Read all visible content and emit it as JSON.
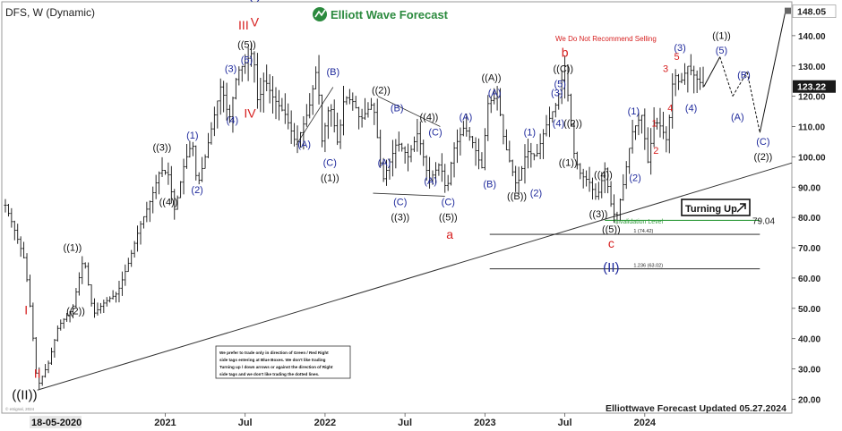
{
  "header": {
    "symbol_label": "DFS, W (Dynamic)",
    "brand": "Elliott Wave Forecast"
  },
  "footer": {
    "updated": "Elliottwave Forecast Updated 05.27.2024",
    "start_date_label": "18-05-2020",
    "credit": "© eSignal, 2024"
  },
  "notes": {
    "disclaimer": "We Do Not Recommend Selling",
    "turning_up": "Turning Up",
    "invalidation": "Invalidation Level",
    "box_lines": [
      "We prefer to trade only in direction of Green / Red Right",
      "side tags entering at Blue Boxes. We don't like trading",
      "Turning up / down arrows or against the direction of Right",
      "side tags and we don't like trading the dotted lines."
    ]
  },
  "colors": {
    "blue": "#1f2a9c",
    "red": "#d61f1f",
    "black": "#111111",
    "green": "#2e9a3a",
    "brand_green": "#2b8a3e"
  },
  "chart_data": {
    "type": "bar",
    "title": "DFS, W (Dynamic)",
    "timeframe": "Weekly",
    "ylim": [
      16,
      150
    ],
    "y_ticks": [
      20,
      30,
      40,
      50,
      60,
      70,
      80,
      90,
      100,
      110,
      120,
      130,
      140
    ],
    "y_tick_labels": [
      "20.00",
      "30.00",
      "40.00",
      "50.00",
      "60.00",
      "70.00",
      "80.00",
      "90.00",
      "100.00",
      "110.00",
      "120.00",
      "130.00",
      "140.00"
    ],
    "price_markers": [
      {
        "value": 148.05,
        "label": "148.05",
        "style": "light"
      },
      {
        "value": 123.22,
        "label": "123.22",
        "style": "dark"
      },
      {
        "value": 79.04,
        "label": "79.04",
        "style": "plain"
      }
    ],
    "x_axis_labels": [
      "2021",
      "Jul",
      "2022",
      "Jul",
      "2023",
      "Jul",
      "2024"
    ],
    "x_axis_positions": [
      2021.0,
      2021.5,
      2022.0,
      2022.5,
      2023.0,
      2023.5,
      2024.0
    ],
    "xlim": [
      2020.0,
      2024.92
    ],
    "price_path": [
      [
        2020.0,
        84
      ],
      [
        2020.05,
        77
      ],
      [
        2020.12,
        66
      ],
      [
        2020.16,
        48
      ],
      [
        2020.2,
        24
      ],
      [
        2020.27,
        32
      ],
      [
        2020.33,
        44
      ],
      [
        2020.42,
        50
      ],
      [
        2020.49,
        67
      ],
      [
        2020.55,
        48
      ],
      [
        2020.62,
        52
      ],
      [
        2020.7,
        55
      ],
      [
        2020.77,
        65
      ],
      [
        2020.84,
        77
      ],
      [
        2020.91,
        86
      ],
      [
        2020.97,
        96
      ],
      [
        2021.02,
        94
      ],
      [
        2021.06,
        82
      ],
      [
        2021.12,
        98
      ],
      [
        2021.17,
        105
      ],
      [
        2021.2,
        90
      ],
      [
        2021.25,
        100
      ],
      [
        2021.3,
        112
      ],
      [
        2021.35,
        124
      ],
      [
        2021.4,
        112
      ],
      [
        2021.45,
        128
      ],
      [
        2021.5,
        131
      ],
      [
        2021.55,
        135
      ],
      [
        2021.58,
        117
      ],
      [
        2021.62,
        126
      ],
      [
        2021.67,
        120
      ],
      [
        2021.75,
        114
      ],
      [
        2021.82,
        104
      ],
      [
        2021.9,
        116
      ],
      [
        2021.95,
        130
      ],
      [
        2021.98,
        105
      ],
      [
        2022.03,
        118
      ],
      [
        2022.08,
        104
      ],
      [
        2022.12,
        120
      ],
      [
        2022.18,
        118
      ],
      [
        2022.22,
        112
      ],
      [
        2022.3,
        118
      ],
      [
        2022.36,
        92
      ],
      [
        2022.45,
        105
      ],
      [
        2022.52,
        100
      ],
      [
        2022.58,
        108
      ],
      [
        2022.65,
        92
      ],
      [
        2022.72,
        98
      ],
      [
        2022.76,
        88
      ],
      [
        2022.8,
        102
      ],
      [
        2022.87,
        110
      ],
      [
        2022.93,
        104
      ],
      [
        2022.98,
        96
      ],
      [
        2023.02,
        118
      ],
      [
        2023.08,
        120
      ],
      [
        2023.12,
        105
      ],
      [
        2023.2,
        90
      ],
      [
        2023.26,
        102
      ],
      [
        2023.32,
        100
      ],
      [
        2023.38,
        110
      ],
      [
        2023.45,
        118
      ],
      [
        2023.5,
        130
      ],
      [
        2023.52,
        120
      ],
      [
        2023.56,
        100
      ],
      [
        2023.6,
        94
      ],
      [
        2023.65,
        92
      ],
      [
        2023.7,
        86
      ],
      [
        2023.75,
        96
      ],
      [
        2023.79,
        84
      ],
      [
        2023.82,
        79
      ],
      [
        2023.87,
        92
      ],
      [
        2023.92,
        108
      ],
      [
        2023.98,
        114
      ],
      [
        2024.02,
        98
      ],
      [
        2024.06,
        112
      ],
      [
        2024.1,
        110
      ],
      [
        2024.14,
        105
      ],
      [
        2024.18,
        128
      ],
      [
        2024.22,
        124
      ],
      [
        2024.27,
        130
      ],
      [
        2024.32,
        126
      ],
      [
        2024.37,
        123.22
      ]
    ],
    "projection": [
      [
        2024.37,
        123.22
      ],
      [
        2024.47,
        133
      ],
      [
        2024.55,
        120
      ],
      [
        2024.64,
        128
      ],
      [
        2024.72,
        108
      ],
      [
        2024.88,
        148
      ]
    ],
    "trendline": [
      [
        2020.2,
        23
      ],
      [
        2024.92,
        98
      ]
    ],
    "support_line_points": [
      [
        2022.3,
        88
      ],
      [
        2022.75,
        87
      ]
    ],
    "channel_line_points": [
      [
        2021.82,
        104
      ],
      [
        2022.05,
        123
      ]
    ],
    "channel_line2_points": [
      [
        2022.33,
        120
      ],
      [
        2022.72,
        110
      ]
    ],
    "levels": [
      {
        "value": 79.04,
        "label": "Invalidation Level",
        "x0": 2023.75,
        "x1": 2024.72,
        "color": "green"
      },
      {
        "value": 74.42,
        "label": "1 (74.42)",
        "x0": 2023.03,
        "x1": 2024.72,
        "color": "black"
      },
      {
        "value": 63.02,
        "label": "1.236 (63.02)",
        "x0": 2023.03,
        "x1": 2024.72,
        "color": "black"
      }
    ],
    "wave_labels": [
      {
        "x": 2020.12,
        "y": 20,
        "text": "((II))",
        "color": "black",
        "size": 15
      },
      {
        "x": 2020.2,
        "y": 27,
        "text": "II",
        "color": "red",
        "size": 14
      },
      {
        "x": 2020.13,
        "y": 48,
        "text": "I",
        "color": "red",
        "size": 14
      },
      {
        "x": 2020.44,
        "y": 48,
        "text": "((2))",
        "color": "black",
        "size": 11
      },
      {
        "x": 2020.42,
        "y": 69,
        "text": "((1))",
        "color": "black",
        "size": 11
      },
      {
        "x": 2021.02,
        "y": 84,
        "text": "((4))",
        "color": "black",
        "size": 11
      },
      {
        "x": 2020.98,
        "y": 102,
        "text": "((3))",
        "color": "black",
        "size": 11
      },
      {
        "x": 2021.2,
        "y": 88,
        "text": "(2)",
        "color": "blue",
        "size": 11
      },
      {
        "x": 2021.17,
        "y": 106,
        "text": "(1)",
        "color": "blue",
        "size": 11
      },
      {
        "x": 2021.42,
        "y": 111,
        "text": "(4)",
        "color": "blue",
        "size": 11
      },
      {
        "x": 2021.41,
        "y": 128,
        "text": "(3)",
        "color": "blue",
        "size": 11
      },
      {
        "x": 2021.51,
        "y": 131,
        "text": "(5)",
        "color": "blue",
        "size": 11
      },
      {
        "x": 2021.51,
        "y": 136,
        "text": "((5))",
        "color": "black",
        "size": 11
      },
      {
        "x": 2021.49,
        "y": 142,
        "text": "III",
        "color": "red",
        "size": 14
      },
      {
        "x": 2021.56,
        "y": 143,
        "text": "V",
        "color": "red",
        "size": 14
      },
      {
        "x": 2021.56,
        "y": 152,
        "text": "(I)",
        "color": "blue",
        "size": 15
      },
      {
        "x": 2021.53,
        "y": 113,
        "text": "IV",
        "color": "red",
        "size": 14
      },
      {
        "x": 2021.87,
        "y": 103,
        "text": "(A)",
        "color": "blue",
        "size": 11
      },
      {
        "x": 2022.05,
        "y": 127,
        "text": "(B)",
        "color": "blue",
        "size": 11
      },
      {
        "x": 2022.03,
        "y": 97,
        "text": "(C)",
        "color": "blue",
        "size": 11
      },
      {
        "x": 2022.03,
        "y": 92,
        "text": "((1))",
        "color": "black",
        "size": 11
      },
      {
        "x": 2022.35,
        "y": 121,
        "text": "((2))",
        "color": "black",
        "size": 11
      },
      {
        "x": 2022.45,
        "y": 115,
        "text": "(B)",
        "color": "blue",
        "size": 11
      },
      {
        "x": 2022.37,
        "y": 97,
        "text": "(A)",
        "color": "blue",
        "size": 11
      },
      {
        "x": 2022.47,
        "y": 84,
        "text": "(C)",
        "color": "blue",
        "size": 11
      },
      {
        "x": 2022.47,
        "y": 79,
        "text": "((3))",
        "color": "black",
        "size": 11
      },
      {
        "x": 2022.65,
        "y": 112,
        "text": "((4))",
        "color": "black",
        "size": 11
      },
      {
        "x": 2022.69,
        "y": 107,
        "text": "(C)",
        "color": "blue",
        "size": 11
      },
      {
        "x": 2022.66,
        "y": 91,
        "text": "(A)",
        "color": "blue",
        "size": 11
      },
      {
        "x": 2022.77,
        "y": 84,
        "text": "(C)",
        "color": "blue",
        "size": 11
      },
      {
        "x": 2022.77,
        "y": 79,
        "text": "((5))",
        "color": "black",
        "size": 11
      },
      {
        "x": 2022.78,
        "y": 73,
        "text": "a",
        "color": "red",
        "size": 14
      },
      {
        "x": 2022.88,
        "y": 112,
        "text": "(A)",
        "color": "blue",
        "size": 11
      },
      {
        "x": 2023.04,
        "y": 125,
        "text": "((A))",
        "color": "black",
        "size": 11
      },
      {
        "x": 2023.06,
        "y": 120,
        "text": "(A)",
        "color": "blue",
        "size": 11
      },
      {
        "x": 2023.03,
        "y": 90,
        "text": "(B)",
        "color": "blue",
        "size": 11
      },
      {
        "x": 2023.2,
        "y": 86,
        "text": "((B))",
        "color": "black",
        "size": 11
      },
      {
        "x": 2023.28,
        "y": 107,
        "text": "(1)",
        "color": "blue",
        "size": 11
      },
      {
        "x": 2023.32,
        "y": 87,
        "text": "(2)",
        "color": "blue",
        "size": 11
      },
      {
        "x": 2023.45,
        "y": 120,
        "text": "(3)",
        "color": "blue",
        "size": 11
      },
      {
        "x": 2023.47,
        "y": 123,
        "text": "(5)",
        "color": "blue",
        "size": 11
      },
      {
        "x": 2023.49,
        "y": 128,
        "text": "((C))",
        "color": "black",
        "size": 11
      },
      {
        "x": 2023.5,
        "y": 133,
        "text": "b",
        "color": "red",
        "size": 14
      },
      {
        "x": 2023.46,
        "y": 110,
        "text": "(4)",
        "color": "blue",
        "size": 11
      },
      {
        "x": 2023.55,
        "y": 110,
        "text": "((2))",
        "color": "black",
        "size": 11
      },
      {
        "x": 2023.52,
        "y": 97,
        "text": "((1))",
        "color": "black",
        "size": 11
      },
      {
        "x": 2023.74,
        "y": 93,
        "text": "((4))",
        "color": "black",
        "size": 11
      },
      {
        "x": 2023.71,
        "y": 80,
        "text": "((3))",
        "color": "black",
        "size": 11
      },
      {
        "x": 2023.79,
        "y": 75,
        "text": "((5))",
        "color": "black",
        "size": 11
      },
      {
        "x": 2023.79,
        "y": 70,
        "text": "c",
        "color": "red",
        "size": 14
      },
      {
        "x": 2023.79,
        "y": 62,
        "text": "(II)",
        "color": "blue",
        "size": 15
      },
      {
        "x": 2023.94,
        "y": 92,
        "text": "(2)",
        "color": "blue",
        "size": 11
      },
      {
        "x": 2023.93,
        "y": 114,
        "text": "(1)",
        "color": "blue",
        "size": 11
      },
      {
        "x": 2024.06,
        "y": 110,
        "text": "1",
        "color": "red",
        "size": 11
      },
      {
        "x": 2024.07,
        "y": 101,
        "text": "2",
        "color": "red",
        "size": 11
      },
      {
        "x": 2024.13,
        "y": 128,
        "text": "3",
        "color": "red",
        "size": 11
      },
      {
        "x": 2024.16,
        "y": 115,
        "text": "4",
        "color": "red",
        "size": 11
      },
      {
        "x": 2024.2,
        "y": 132,
        "text": "5",
        "color": "red",
        "size": 11
      },
      {
        "x": 2024.22,
        "y": 135,
        "text": "(3)",
        "color": "blue",
        "size": 11
      },
      {
        "x": 2024.29,
        "y": 115,
        "text": "(4)",
        "color": "blue",
        "size": 11
      },
      {
        "x": 2024.48,
        "y": 139,
        "text": "((1))",
        "color": "black",
        "size": 11
      },
      {
        "x": 2024.48,
        "y": 134,
        "text": "(5)",
        "color": "blue",
        "size": 11
      },
      {
        "x": 2024.62,
        "y": 126,
        "text": "(B)",
        "color": "blue",
        "size": 11
      },
      {
        "x": 2024.58,
        "y": 112,
        "text": "(A)",
        "color": "blue",
        "size": 11
      },
      {
        "x": 2024.74,
        "y": 104,
        "text": "(C)",
        "color": "blue",
        "size": 11
      },
      {
        "x": 2024.74,
        "y": 99,
        "text": "((2))",
        "color": "black",
        "size": 11
      }
    ]
  }
}
